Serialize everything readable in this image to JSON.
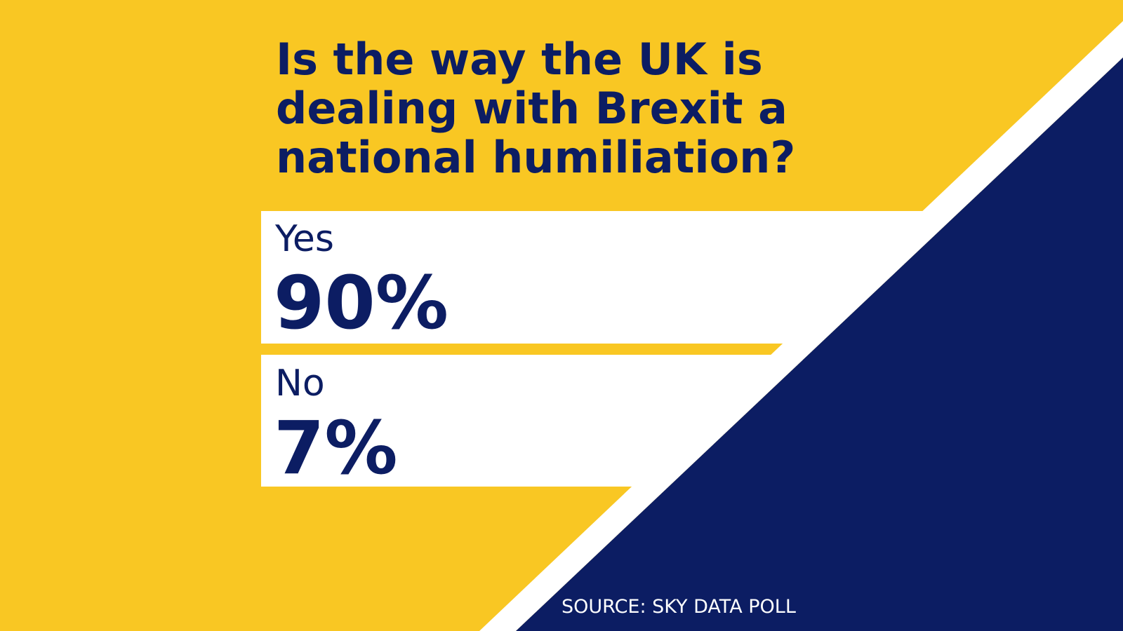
{
  "title_lines": [
    "Is the way the UK is",
    "dealing with Brexit a",
    "national humiliation?"
  ],
  "answers": [
    {
      "label": "Yes",
      "value": "90%"
    },
    {
      "label": "No",
      "value": "7%"
    }
  ],
  "source": "SOURCE: SKY DATA POLL"
}
